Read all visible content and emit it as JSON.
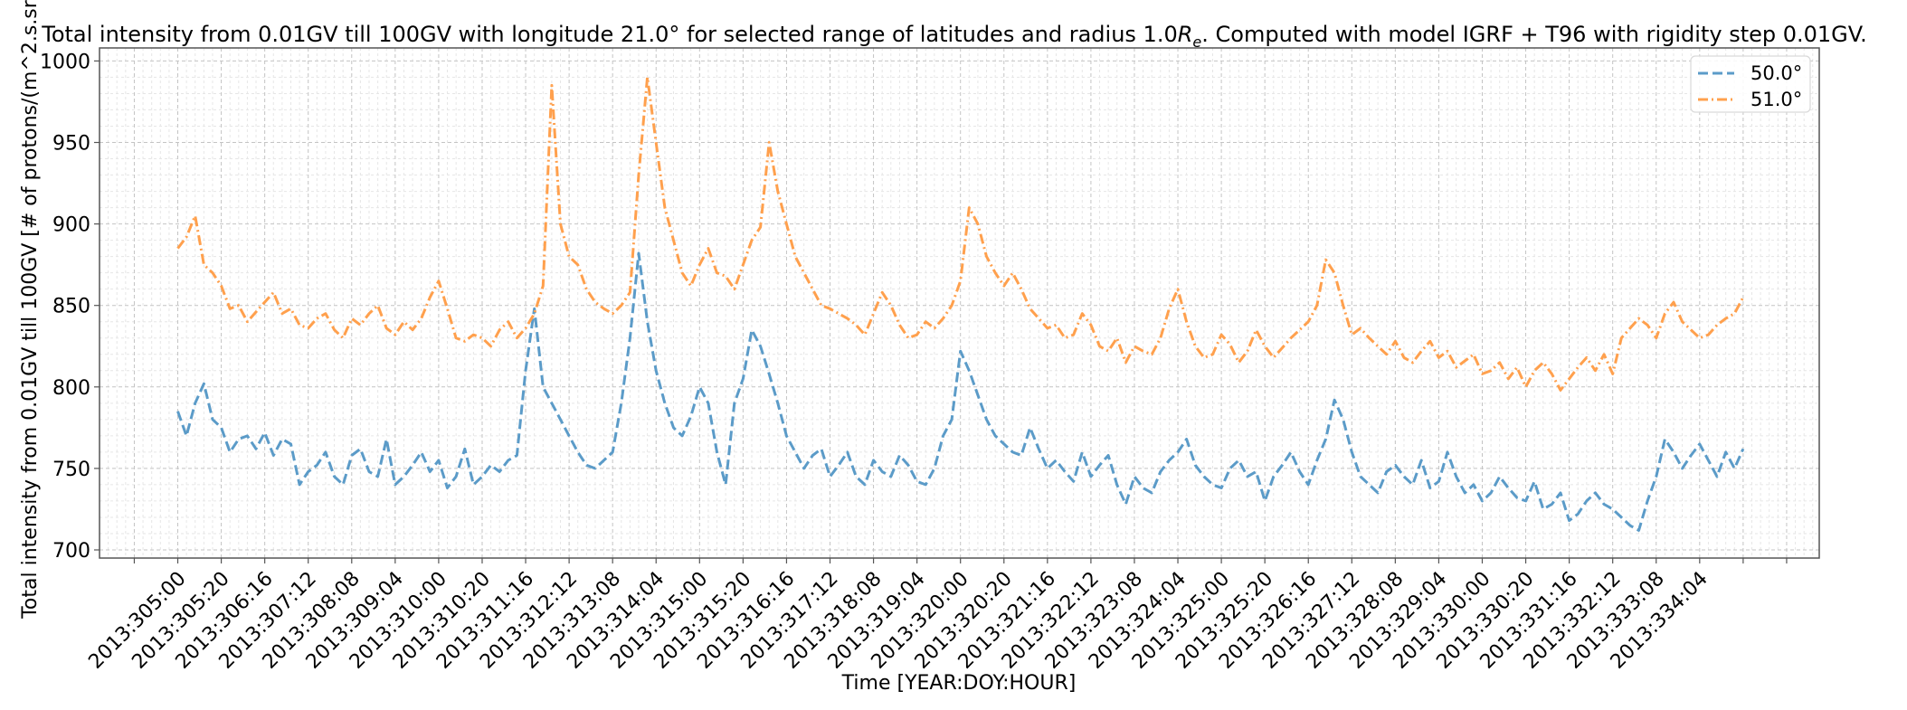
{
  "chart_data": {
    "type": "line",
    "title_parts": {
      "before_sub": "Total intensity from 0.01GV till 100GV with longitude 21.0° for selected range of latitudes and radius 1.0",
      "symbol": "R",
      "subscript": "e",
      "after_sub": ". Computed with model IGRF + T96 with rigidity step 0.01GV."
    },
    "xlabel": "Time [YEAR:DOY:HOUR]",
    "ylabel": "Total intensity from 0.01GV till 100GV [# of protons/(m^2.s.sr",
    "x_unit": "hours since 2013:305:00",
    "xlim": [
      -36,
      755
    ],
    "ylim": [
      695,
      1008
    ],
    "yticks": [
      700,
      750,
      800,
      850,
      900,
      950,
      1000
    ],
    "xticks": [
      {
        "hours": 0,
        "label": "2013:305:00"
      },
      {
        "hours": 20,
        "label": "2013:305:20"
      },
      {
        "hours": 40,
        "label": "2013:306:16"
      },
      {
        "hours": 60,
        "label": "2013:307:12"
      },
      {
        "hours": 80,
        "label": "2013:308:08"
      },
      {
        "hours": 100,
        "label": "2013:309:04"
      },
      {
        "hours": 120,
        "label": "2013:310:00"
      },
      {
        "hours": 140,
        "label": "2013:310:20"
      },
      {
        "hours": 160,
        "label": "2013:311:16"
      },
      {
        "hours": 180,
        "label": "2013:312:12"
      },
      {
        "hours": 200,
        "label": "2013:313:08"
      },
      {
        "hours": 220,
        "label": "2013:314:04"
      },
      {
        "hours": 240,
        "label": "2013:315:00"
      },
      {
        "hours": 260,
        "label": "2013:315:20"
      },
      {
        "hours": 280,
        "label": "2013:316:16"
      },
      {
        "hours": 300,
        "label": "2013:317:12"
      },
      {
        "hours": 320,
        "label": "2013:318:08"
      },
      {
        "hours": 340,
        "label": "2013:319:04"
      },
      {
        "hours": 360,
        "label": "2013:320:00"
      },
      {
        "hours": 380,
        "label": "2013:320:20"
      },
      {
        "hours": 400,
        "label": "2013:321:16"
      },
      {
        "hours": 420,
        "label": "2013:322:12"
      },
      {
        "hours": 440,
        "label": "2013:323:08"
      },
      {
        "hours": 460,
        "label": "2013:324:04"
      },
      {
        "hours": 480,
        "label": "2013:325:00"
      },
      {
        "hours": 500,
        "label": "2013:325:20"
      },
      {
        "hours": 520,
        "label": "2013:326:16"
      },
      {
        "hours": 540,
        "label": "2013:327:12"
      },
      {
        "hours": 560,
        "label": "2013:328:08"
      },
      {
        "hours": 580,
        "label": "2013:329:04"
      },
      {
        "hours": 600,
        "label": "2013:330:00"
      },
      {
        "hours": 620,
        "label": "2013:330:20"
      },
      {
        "hours": 640,
        "label": "2013:331:16"
      },
      {
        "hours": 660,
        "label": "2013:332:12"
      },
      {
        "hours": 680,
        "label": "2013:333:08"
      },
      {
        "hours": 700,
        "label": "2013:334:04"
      }
    ],
    "unlabeled_xticks": [
      -20,
      720,
      740
    ],
    "grid": true,
    "minor_grid": true,
    "legend_position": "top-right",
    "x_step_hours": 4,
    "series": [
      {
        "name": "50.0°",
        "color": "#5b9bc8",
        "linestyle": "dashed",
        "values": [
          785,
          770,
          790,
          802,
          780,
          775,
          760,
          768,
          770,
          762,
          772,
          758,
          768,
          765,
          740,
          748,
          752,
          760,
          745,
          740,
          758,
          762,
          748,
          745,
          768,
          740,
          745,
          752,
          760,
          748,
          755,
          738,
          745,
          762,
          740,
          745,
          752,
          748,
          755,
          758,
          810,
          848,
          800,
          790,
          780,
          770,
          760,
          752,
          750,
          755,
          760,
          790,
          830,
          882,
          840,
          810,
          790,
          775,
          770,
          782,
          800,
          790,
          760,
          740,
          790,
          805,
          835,
          825,
          808,
          790,
          770,
          760,
          750,
          758,
          762,
          745,
          752,
          760,
          745,
          740,
          755,
          748,
          745,
          758,
          752,
          742,
          740,
          750,
          770,
          780,
          822,
          810,
          795,
          780,
          770,
          765,
          760,
          758,
          775,
          762,
          750,
          755,
          748,
          742,
          760,
          745,
          752,
          758,
          740,
          728,
          745,
          738,
          735,
          748,
          755,
          760,
          768,
          752,
          745,
          740,
          738,
          750,
          755,
          745,
          748,
          730,
          745,
          752,
          760,
          748,
          740,
          755,
          768,
          792,
          780,
          760,
          745,
          740,
          735,
          748,
          752,
          745,
          740,
          755,
          738,
          742,
          760,
          745,
          735,
          740,
          730,
          735,
          745,
          738,
          732,
          730,
          742,
          725,
          728,
          735,
          718,
          722,
          730,
          735,
          728,
          725,
          720,
          715,
          712,
          730,
          745,
          768,
          760,
          750,
          758,
          765,
          755,
          745,
          760,
          750,
          762
        ]
      },
      {
        "name": "51.0°",
        "color": "#ffa04d",
        "linestyle": "dashdot",
        "values": [
          885,
          892,
          905,
          875,
          870,
          862,
          848,
          850,
          840,
          846,
          852,
          858,
          845,
          848,
          838,
          836,
          842,
          845,
          835,
          830,
          842,
          838,
          845,
          850,
          836,
          832,
          840,
          835,
          842,
          855,
          865,
          848,
          830,
          828,
          832,
          830,
          825,
          835,
          840,
          830,
          836,
          845,
          862,
          985,
          900,
          880,
          875,
          860,
          852,
          848,
          845,
          850,
          858,
          930,
          990,
          950,
          910,
          890,
          870,
          862,
          875,
          885,
          870,
          868,
          860,
          875,
          890,
          898,
          950,
          920,
          900,
          880,
          870,
          860,
          850,
          848,
          845,
          842,
          838,
          832,
          845,
          858,
          850,
          838,
          830,
          832,
          840,
          836,
          842,
          850,
          865,
          910,
          900,
          880,
          870,
          862,
          870,
          860,
          848,
          842,
          836,
          838,
          830,
          832,
          845,
          838,
          825,
          822,
          830,
          815,
          825,
          822,
          820,
          830,
          848,
          860,
          840,
          825,
          818,
          820,
          832,
          826,
          815,
          822,
          835,
          825,
          818,
          824,
          830,
          835,
          840,
          850,
          878,
          870,
          850,
          832,
          836,
          830,
          825,
          820,
          828,
          818,
          815,
          822,
          828,
          818,
          822,
          812,
          816,
          820,
          808,
          810,
          815,
          805,
          812,
          800,
          810,
          815,
          808,
          798,
          805,
          812,
          818,
          810,
          820,
          808,
          830,
          836,
          842,
          838,
          830,
          845,
          852,
          840,
          835,
          830,
          832,
          838,
          842,
          845,
          855
        ]
      }
    ]
  }
}
